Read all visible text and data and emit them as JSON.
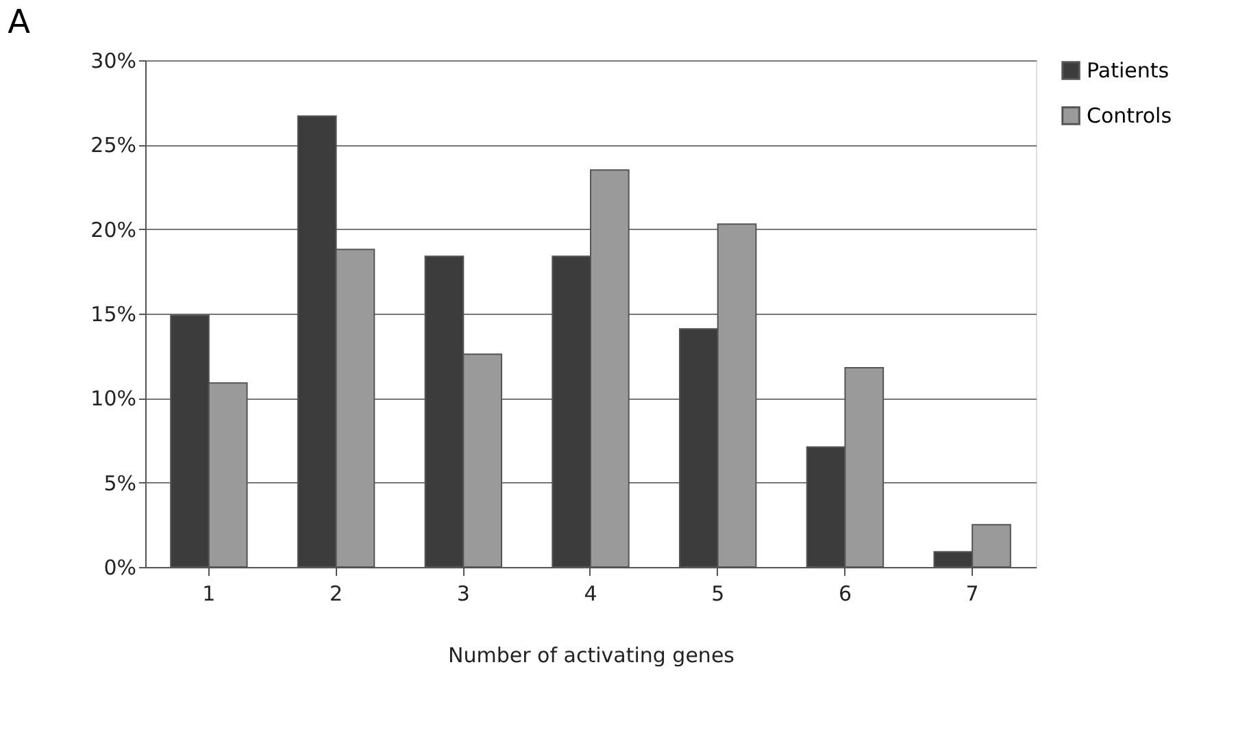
{
  "chart_data": {
    "type": "bar",
    "title": "A",
    "xlabel": "Number of activating genes",
    "categories": [
      "1",
      "2",
      "3",
      "4",
      "5",
      "6",
      "7"
    ],
    "series": [
      {
        "name": "Patients",
        "color": "#3c3c3c",
        "values": [
          14.9,
          26.7,
          18.4,
          18.4,
          14.1,
          7.1,
          0.9
        ]
      },
      {
        "name": "Controls",
        "color": "#9a9a9a",
        "values": [
          10.9,
          18.8,
          12.6,
          23.5,
          20.3,
          11.8,
          2.5
        ]
      }
    ],
    "ylim": [
      0,
      30
    ],
    "yticks": [
      {
        "value": 0,
        "label": "0%"
      },
      {
        "value": 5,
        "label": "5%"
      },
      {
        "value": 10,
        "label": "10%"
      },
      {
        "value": 15,
        "label": "15%"
      },
      {
        "value": 20,
        "label": "20%"
      },
      {
        "value": 25,
        "label": "25%"
      },
      {
        "value": 30,
        "label": "30%"
      }
    ],
    "grid": "y",
    "legend": "right"
  }
}
